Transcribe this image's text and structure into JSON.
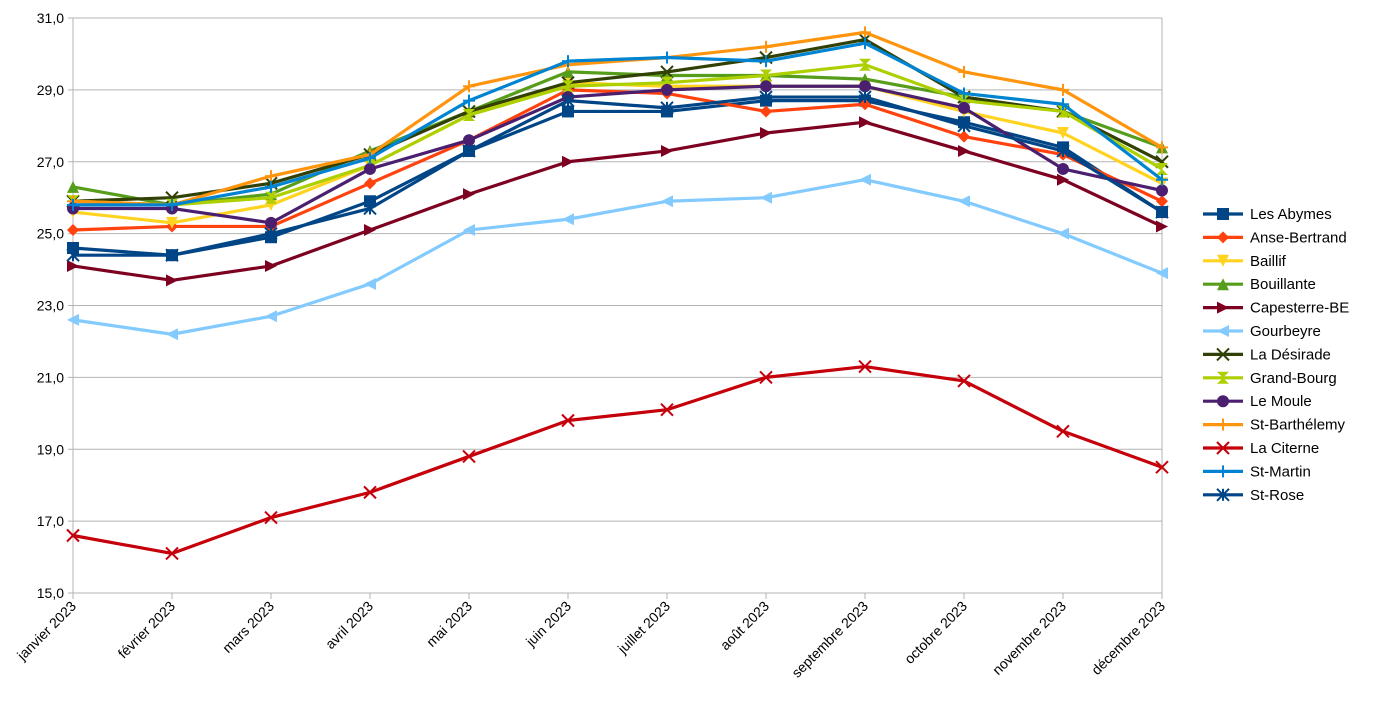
{
  "chart_data": {
    "type": "line",
    "categories": [
      "janvier 2023",
      "février 2023",
      "mars 2023",
      "avril 2023",
      "mai 2023",
      "juin 2023",
      "juillet 2023",
      "août 2023",
      "septembre 2023",
      "octobre 2023",
      "novembre 2023",
      "décembre 2023"
    ],
    "ylim": [
      15.0,
      31.0
    ],
    "yticks": [
      "15,0",
      "17,0",
      "19,0",
      "21,0",
      "23,0",
      "25,0",
      "27,0",
      "29,0",
      "31,0"
    ],
    "grid": true,
    "legend_position": "right",
    "series": [
      {
        "name": "Les Abymes",
        "color": "#004586",
        "marker": "square",
        "values": [
          24.6,
          24.4,
          24.9,
          25.9,
          27.3,
          28.4,
          28.4,
          28.7,
          28.7,
          28.1,
          27.4,
          25.6
        ]
      },
      {
        "name": "Anse-Bertrand",
        "color": "#ff420e",
        "marker": "diamond",
        "values": [
          25.1,
          25.2,
          25.2,
          26.4,
          27.6,
          29.0,
          28.9,
          28.4,
          28.6,
          27.7,
          27.2,
          25.9
        ]
      },
      {
        "name": "Baillif",
        "color": "#ffd320",
        "marker": "triangle-down",
        "values": [
          25.6,
          25.3,
          25.8,
          26.9,
          28.3,
          29.2,
          29.1,
          29.1,
          29.1,
          28.4,
          27.8,
          26.4
        ]
      },
      {
        "name": "Bouillante",
        "color": "#579d1c",
        "marker": "triangle-up",
        "values": [
          26.3,
          25.8,
          26.1,
          27.3,
          28.4,
          29.5,
          29.4,
          29.4,
          29.3,
          28.8,
          28.4,
          27.4
        ]
      },
      {
        "name": "Capesterre-BE",
        "color": "#7e0021",
        "marker": "triangle-right",
        "values": [
          24.1,
          23.7,
          24.1,
          25.1,
          26.1,
          27.0,
          27.3,
          27.8,
          28.1,
          27.3,
          26.5,
          25.2
        ]
      },
      {
        "name": "Gourbeyre",
        "color": "#83caff",
        "marker": "triangle-left",
        "values": [
          22.6,
          22.2,
          22.7,
          23.6,
          25.1,
          25.4,
          25.9,
          26.0,
          26.5,
          25.9,
          25.0,
          23.9
        ]
      },
      {
        "name": "La Désirade",
        "color": "#314004",
        "marker": "x",
        "values": [
          25.9,
          26.0,
          26.4,
          27.2,
          28.4,
          29.2,
          29.5,
          29.9,
          30.4,
          28.8,
          28.4,
          27.0
        ]
      },
      {
        "name": "Grand-Bourg",
        "color": "#aecf00",
        "marker": "hourglass",
        "values": [
          25.9,
          25.8,
          26.0,
          26.9,
          28.3,
          29.1,
          29.2,
          29.4,
          29.7,
          28.7,
          28.4,
          26.8
        ]
      },
      {
        "name": "Le Moule",
        "color": "#4b1f6f",
        "marker": "circle",
        "values": [
          25.7,
          25.7,
          25.3,
          26.8,
          27.6,
          28.8,
          29.0,
          29.1,
          29.1,
          28.5,
          26.8,
          26.2
        ]
      },
      {
        "name": "St-Barthélemy",
        "color": "#ff950e",
        "marker": "plus",
        "values": [
          25.9,
          25.8,
          26.6,
          27.2,
          29.1,
          29.7,
          29.9,
          30.2,
          30.6,
          29.5,
          29.0,
          27.4
        ]
      },
      {
        "name": "La Citerne",
        "color": "#c5000b",
        "marker": "x",
        "values": [
          16.6,
          16.1,
          17.1,
          17.8,
          18.8,
          19.8,
          20.1,
          21.0,
          21.3,
          20.9,
          19.5,
          18.5
        ]
      },
      {
        "name": "St-Martin",
        "color": "#0084d1",
        "marker": "plus",
        "values": [
          25.8,
          25.8,
          26.3,
          27.1,
          28.7,
          29.8,
          29.9,
          29.8,
          30.3,
          28.9,
          28.6,
          26.5
        ]
      },
      {
        "name": "St-Rose",
        "color": "#004586",
        "marker": "asterisk",
        "values": [
          24.4,
          24.4,
          25.0,
          25.7,
          27.3,
          28.7,
          28.5,
          28.8,
          28.8,
          28.0,
          27.3,
          25.6
        ]
      }
    ]
  }
}
